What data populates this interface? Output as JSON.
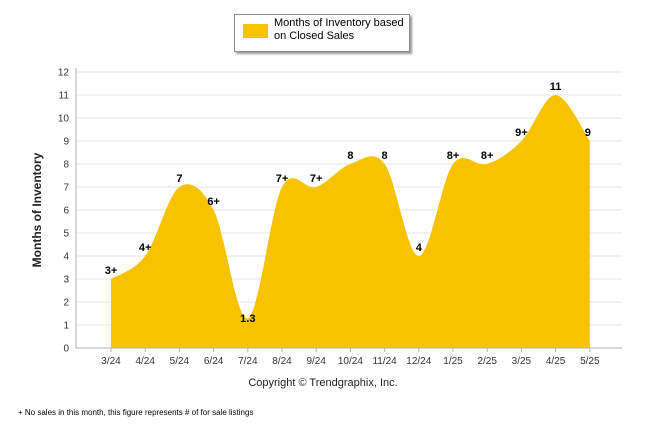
{
  "chart_data": {
    "type": "area",
    "title": "",
    "xlabel": "",
    "ylabel": "Months of Inventory",
    "categories": [
      "3/24",
      "4/24",
      "5/24",
      "6/24",
      "7/24",
      "8/24",
      "9/24",
      "10/24",
      "11/24",
      "12/24",
      "1/25",
      "2/25",
      "3/25",
      "4/25",
      "5/25"
    ],
    "series": [
      {
        "name": "Months of Inventory based on Closed Sales",
        "values": [
          3,
          4,
          7,
          6,
          1.3,
          7,
          7,
          8,
          8,
          4,
          8,
          8,
          9,
          11,
          9
        ],
        "labels": [
          "3+",
          "4+",
          "7",
          "6+",
          "1.3",
          "7+",
          "7+",
          "8",
          "8",
          "4",
          "8+",
          "8+",
          "9+",
          "11",
          "9"
        ],
        "color": "#f7c200"
      }
    ],
    "ylim": [
      0,
      12
    ],
    "yticks": [
      0,
      1,
      2,
      3,
      4,
      5,
      6,
      7,
      8,
      9,
      10,
      11,
      12
    ],
    "grid": true,
    "legend": "top-center"
  },
  "copyright": "Copyright © Trendgraphix, Inc.",
  "footnote": "+ No sales in this month, this figure represents # of for sale listings",
  "colors": {
    "area": "#f7c200",
    "grid": "#e6e6e6",
    "axis": "#b0b0b0"
  }
}
